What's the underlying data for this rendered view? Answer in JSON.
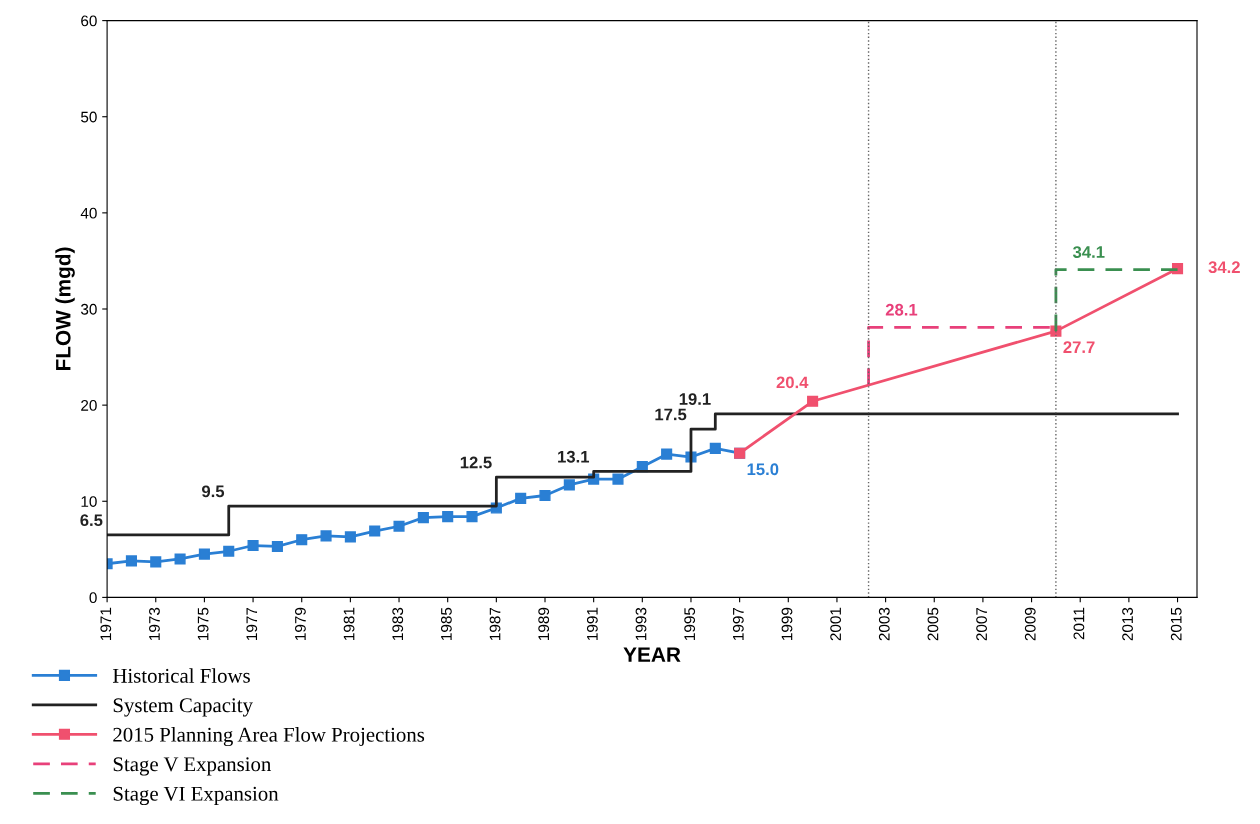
{
  "chart_data": {
    "type": "line",
    "xlabel": "YEAR",
    "ylabel": "FLOW (mgd)",
    "xlim": [
      1971,
      2015.8
    ],
    "xticks": [
      1971,
      1973,
      1975,
      1977,
      1979,
      1981,
      1983,
      1985,
      1987,
      1989,
      1991,
      1993,
      1995,
      1997,
      1999,
      2001,
      2003,
      2005,
      2007,
      2009,
      2011,
      2013,
      2015
    ],
    "ylim": [
      0,
      60
    ],
    "yticks": [
      0,
      10,
      20,
      30,
      40,
      50,
      60
    ],
    "grid": false,
    "legend": "bottom left",
    "series": [
      {
        "name": "Historical Flows",
        "color": "#2a7fd4",
        "marker": "square",
        "line_style": "solid",
        "x": [
          1971,
          1972,
          1973,
          1974,
          1975,
          1976,
          1977,
          1978,
          1979,
          1980,
          1981,
          1982,
          1983,
          1984,
          1985,
          1986,
          1987,
          1988,
          1989,
          1990,
          1991,
          1992,
          1993,
          1994,
          1995,
          1996,
          1997
        ],
        "values": [
          3.5,
          3.8,
          3.7,
          4.0,
          4.5,
          4.8,
          5.4,
          5.3,
          6.0,
          6.4,
          6.3,
          6.9,
          7.4,
          8.3,
          8.4,
          8.4,
          9.3,
          10.3,
          10.6,
          11.7,
          12.3,
          12.3,
          13.6,
          14.9,
          14.6,
          15.5,
          15.0
        ],
        "value_labels": [
          null,
          null,
          null,
          null,
          null,
          null,
          null,
          null,
          null,
          null,
          null,
          null,
          null,
          null,
          null,
          null,
          null,
          null,
          null,
          null,
          null,
          null,
          null,
          null,
          null,
          null,
          "15.0"
        ]
      },
      {
        "name": "System Capacity",
        "type": "step",
        "color": "#222222",
        "marker": "none",
        "line_style": "solid",
        "x": [
          1971,
          1976,
          1987,
          1991,
          1995,
          1996,
          2015
        ],
        "values": [
          6.5,
          9.5,
          12.5,
          13.1,
          17.5,
          19.1,
          19.1
        ],
        "value_labels": [
          "6.5",
          "9.5",
          "12.5",
          "13.1",
          "17.5",
          "19.1",
          null
        ]
      },
      {
        "name": "2015 Planning Area Flow Projections",
        "color": "#f0506e",
        "marker": "square",
        "line_style": "solid",
        "x": [
          1997,
          2000,
          2010,
          2015
        ],
        "values": [
          15.0,
          20.4,
          27.7,
          34.2
        ],
        "value_labels": [
          null,
          "20.4",
          "27.7",
          "34.2"
        ]
      },
      {
        "name": "Stage V Expansion",
        "color": "#e8407a",
        "marker": "none",
        "line_style": "dashed",
        "x": [
          2002.3,
          2002.3,
          2010
        ],
        "values": [
          22.1,
          28.1,
          28.1
        ],
        "value_labels": [
          null,
          "28.1",
          null
        ]
      },
      {
        "name": "Stage VI Expansion",
        "color": "#3a8f50",
        "marker": "none",
        "line_style": "dashed",
        "x": [
          2010,
          2010,
          2015
        ],
        "values": [
          27.7,
          34.1,
          34.1
        ],
        "value_labels": [
          null,
          "34.1",
          null
        ]
      }
    ],
    "ref_lines": [
      {
        "axis": "x",
        "value": 2002.3,
        "color": "#666666",
        "line_style": "dotted"
      },
      {
        "axis": "x",
        "value": 2010,
        "color": "#666666",
        "line_style": "dotted"
      }
    ]
  }
}
